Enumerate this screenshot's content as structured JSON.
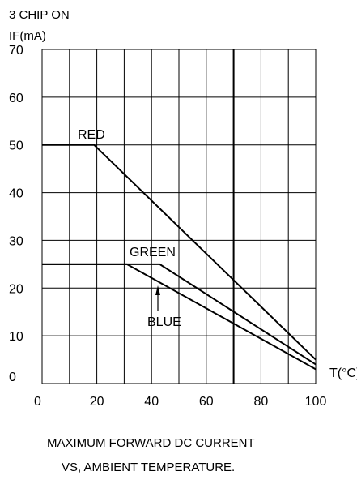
{
  "chart_data": {
    "type": "line",
    "header": "3 CHIP ON",
    "ylabel": "IF(mA)",
    "xlabel": "T(°C)",
    "caption_lines": [
      "MAXIMUM FORWARD DC CURRENT",
      "VS, AMBIENT TEMPERATURE."
    ],
    "xlim": [
      0,
      100
    ],
    "ylim": [
      0,
      70
    ],
    "x_ticks": [
      0,
      20,
      40,
      60,
      80,
      100
    ],
    "y_ticks": [
      0,
      10,
      20,
      30,
      40,
      50,
      60,
      70
    ],
    "grid": true,
    "series": [
      {
        "name": "RED",
        "x": [
          0,
          19,
          100
        ],
        "y": [
          50,
          50,
          5
        ]
      },
      {
        "name": "GREEN",
        "x": [
          0,
          43,
          100
        ],
        "y": [
          25,
          25,
          4
        ]
      },
      {
        "name": "BLUE",
        "x": [
          0,
          31,
          100
        ],
        "y": [
          25,
          25,
          3
        ]
      }
    ]
  }
}
